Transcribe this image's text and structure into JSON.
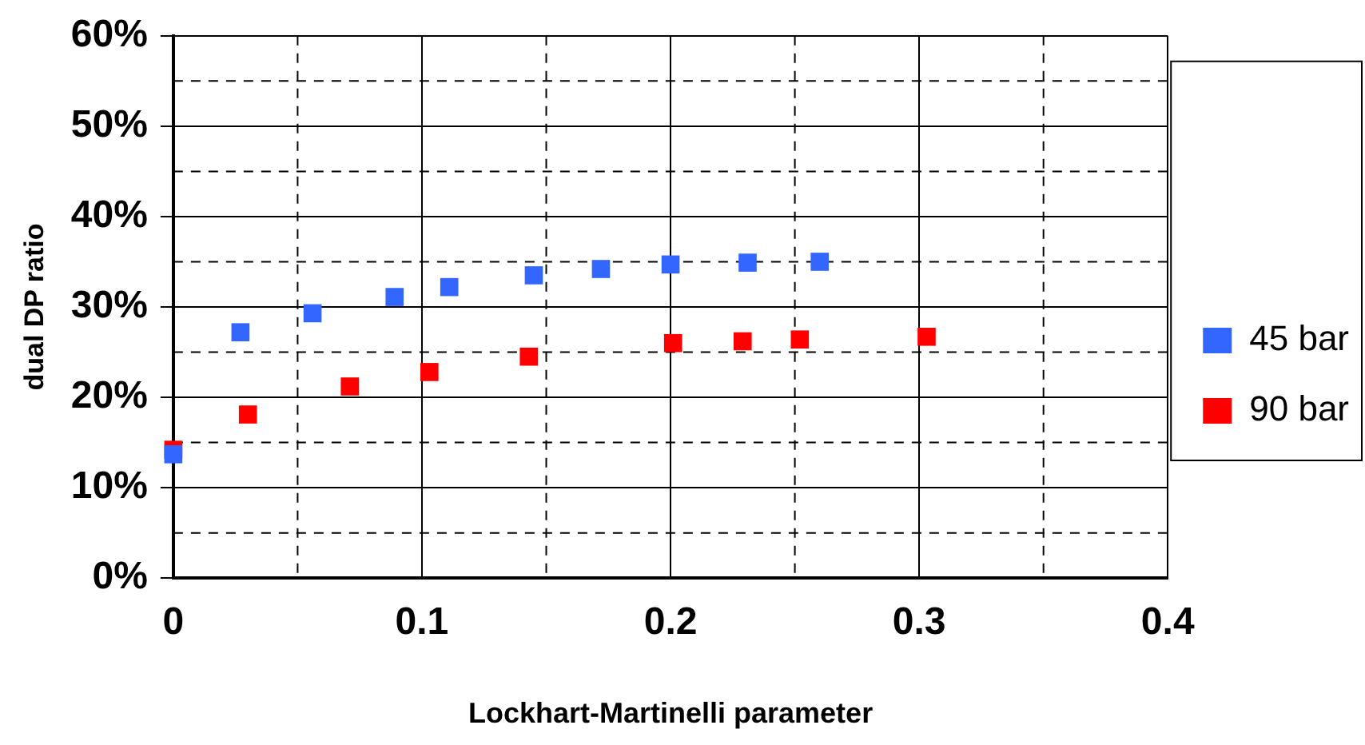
{
  "chart_data": {
    "type": "scatter",
    "xlabel": "Lockhart-Martinelli parameter",
    "ylabel": "dual DP ratio",
    "xlim": [
      0,
      0.4
    ],
    "xticks": [
      0,
      0.1,
      0.2,
      0.3,
      0.4
    ],
    "ylim": [
      0,
      60
    ],
    "yticks": [
      {
        "value": 0,
        "label": "0%"
      },
      {
        "value": 10,
        "label": "10%"
      },
      {
        "value": 20,
        "label": "20%"
      },
      {
        "value": 30,
        "label": "30%"
      },
      {
        "value": 40,
        "label": "40%"
      },
      {
        "value": 50,
        "label": "50%"
      },
      {
        "value": 60,
        "label": "60%"
      }
    ],
    "grid": true,
    "legend": "right",
    "marker": "square",
    "series": [
      {
        "name": "45 bar",
        "color": "#3366ff",
        "x": [
          0,
          0.027,
          0.056,
          0.089,
          0.111,
          0.145,
          0.172,
          0.2,
          0.231,
          0.26
        ],
        "values": [
          13.7,
          27.2,
          29.3,
          31.1,
          32.2,
          33.5,
          34.2,
          34.7,
          34.9,
          35.0
        ]
      },
      {
        "name": "90 bar",
        "color": "#ff0000",
        "x": [
          0,
          0.03,
          0.071,
          0.103,
          0.143,
          0.201,
          0.229,
          0.252,
          0.303
        ],
        "values": [
          14.2,
          18.1,
          21.2,
          22.8,
          24.5,
          26.0,
          26.2,
          26.4,
          26.7
        ]
      }
    ]
  }
}
